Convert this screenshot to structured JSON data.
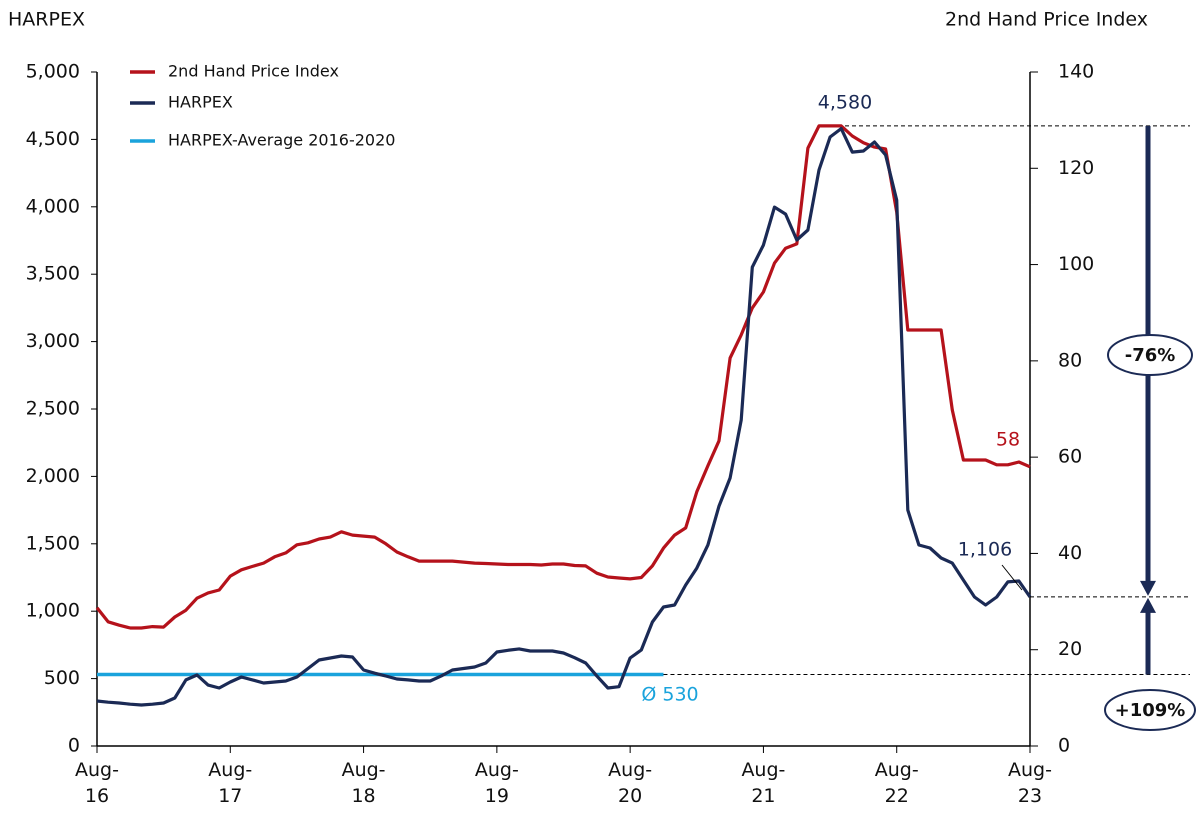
{
  "chart_data": {
    "type": "line",
    "ylabel": "HARPEX",
    "y2label": "2nd Hand Price Index",
    "x": [
      "2016-08",
      "2016-09",
      "2016-10",
      "2016-11",
      "2016-12",
      "2017-01",
      "2017-02",
      "2017-03",
      "2017-04",
      "2017-05",
      "2017-06",
      "2017-07",
      "2017-08",
      "2017-09",
      "2017-10",
      "2017-11",
      "2017-12",
      "2018-01",
      "2018-02",
      "2018-03",
      "2018-04",
      "2018-05",
      "2018-06",
      "2018-07",
      "2018-08",
      "2018-09",
      "2018-10",
      "2018-11",
      "2018-12",
      "2019-01",
      "2019-02",
      "2019-03",
      "2019-04",
      "2019-05",
      "2019-06",
      "2019-07",
      "2019-08",
      "2019-09",
      "2019-10",
      "2019-11",
      "2019-12",
      "2020-01",
      "2020-02",
      "2020-03",
      "2020-04",
      "2020-05",
      "2020-06",
      "2020-07",
      "2020-08",
      "2020-09",
      "2020-10",
      "2020-11",
      "2020-12",
      "2021-01",
      "2021-02",
      "2021-03",
      "2021-04",
      "2021-05",
      "2021-06",
      "2021-07",
      "2021-08",
      "2021-09",
      "2021-10",
      "2021-11",
      "2021-12",
      "2022-01",
      "2022-02",
      "2022-03",
      "2022-04",
      "2022-05",
      "2022-06",
      "2022-07",
      "2022-08",
      "2022-09",
      "2022-10",
      "2022-11",
      "2022-12",
      "2023-01",
      "2023-02",
      "2023-03",
      "2023-04",
      "2023-05",
      "2023-06",
      "2023-07",
      "2023-08"
    ],
    "series": [
      {
        "name": "2nd Hand Price Index",
        "color": "#b5121b",
        "axis": "y2",
        "values": [
          28.7,
          25.8,
          25.1,
          24.5,
          24.5,
          24.8,
          24.7,
          26.8,
          28.2,
          30.7,
          31.8,
          32.4,
          35.3,
          36.6,
          37.3,
          38,
          39.3,
          40.1,
          41.8,
          42.2,
          43,
          43.4,
          44.5,
          43.8,
          43.6,
          43.4,
          42,
          40.3,
          39.3,
          38.4,
          38.4,
          38.4,
          38.4,
          38.2,
          38,
          37.9,
          37.8,
          37.7,
          37.7,
          37.7,
          37.6,
          37.8,
          37.8,
          37.5,
          37.4,
          35.9,
          35.1,
          34.9,
          34.7,
          35,
          37.4,
          41.1,
          43.8,
          45.3,
          52.8,
          58.2,
          63.4,
          80.6,
          85.4,
          91,
          94.3,
          100.3,
          103.4,
          104.3,
          124.2,
          128.8,
          128.8,
          128.8,
          126.7,
          125.3,
          124.4,
          124,
          110.9,
          86.4,
          86.4,
          86.4,
          86.4,
          69.8,
          59.4,
          59.4,
          59.4,
          58.4,
          58.4,
          59,
          58
        ]
      },
      {
        "name": "HARPEX",
        "color": "#1b2a55",
        "values": [
          334,
          325,
          319,
          310,
          304,
          310,
          319,
          356,
          490,
          527,
          452,
          430,
          475,
          512,
          490,
          467,
          475,
          482,
          512,
          575,
          638,
          653,
          668,
          660,
          564,
          540,
          519,
          497,
          490,
          482,
          482,
          520,
          564,
          575,
          586,
          616,
          697,
          710,
          720,
          705,
          705,
          705,
          690,
          655,
          616,
          520,
          430,
          440,
          653,
          712,
          920,
          1031,
          1046,
          1194,
          1320,
          1491,
          1780,
          1988,
          2418,
          3553,
          3716,
          3998,
          3946,
          3754,
          3828,
          4273,
          4518,
          4580,
          4406,
          4414,
          4481,
          4384,
          4050,
          1751,
          1491,
          1469,
          1395,
          1357,
          1231,
          1105,
          1046,
          1105,
          1217,
          1224,
          1106
        ]
      }
    ],
    "reference_line": {
      "name": "HARPEX-Average 2016-2020",
      "color": "#1aa3dc",
      "value": 530,
      "label": "Ø 530",
      "from": "2016-08",
      "to": "2020-11"
    },
    "annotations": [
      {
        "text": "4,580",
        "color": "#1b2a55"
      },
      {
        "text": "58",
        "color": "#b5121b"
      },
      {
        "text": "1,106",
        "color": "#1b2a55"
      },
      {
        "text": "-76%"
      },
      {
        "text": "+109%"
      }
    ],
    "xticks": [
      {
        "value": "2016-08",
        "label": "Aug-16"
      },
      {
        "value": "2017-08",
        "label": "Aug-17"
      },
      {
        "value": "2018-08",
        "label": "Aug-18"
      },
      {
        "value": "2019-08",
        "label": "Aug-19"
      },
      {
        "value": "2020-08",
        "label": "Aug-20"
      },
      {
        "value": "2021-08",
        "label": "Aug-21"
      },
      {
        "value": "2022-08",
        "label": "Aug-22"
      },
      {
        "value": "2023-08",
        "label": "Aug-23"
      }
    ],
    "ylim": [
      0,
      5000
    ],
    "yticks": [
      0,
      500,
      {
        "value": 1000,
        "label": "1,000"
      },
      {
        "value": 1500,
        "label": "1,500"
      },
      {
        "value": 2000,
        "label": "2,000"
      },
      {
        "value": 2500,
        "label": "2,500"
      },
      {
        "value": 3000,
        "label": "3,000"
      },
      {
        "value": 3500,
        "label": "3,500"
      },
      {
        "value": 4000,
        "label": "4,000"
      },
      {
        "value": 4500,
        "label": "4,500"
      },
      {
        "value": 5000,
        "label": "5,000"
      }
    ],
    "y2lim": [
      0,
      140
    ],
    "y2ticks": [
      0,
      20,
      40,
      60,
      80,
      100,
      120,
      140
    ],
    "legend": "top-left",
    "grid": false
  }
}
